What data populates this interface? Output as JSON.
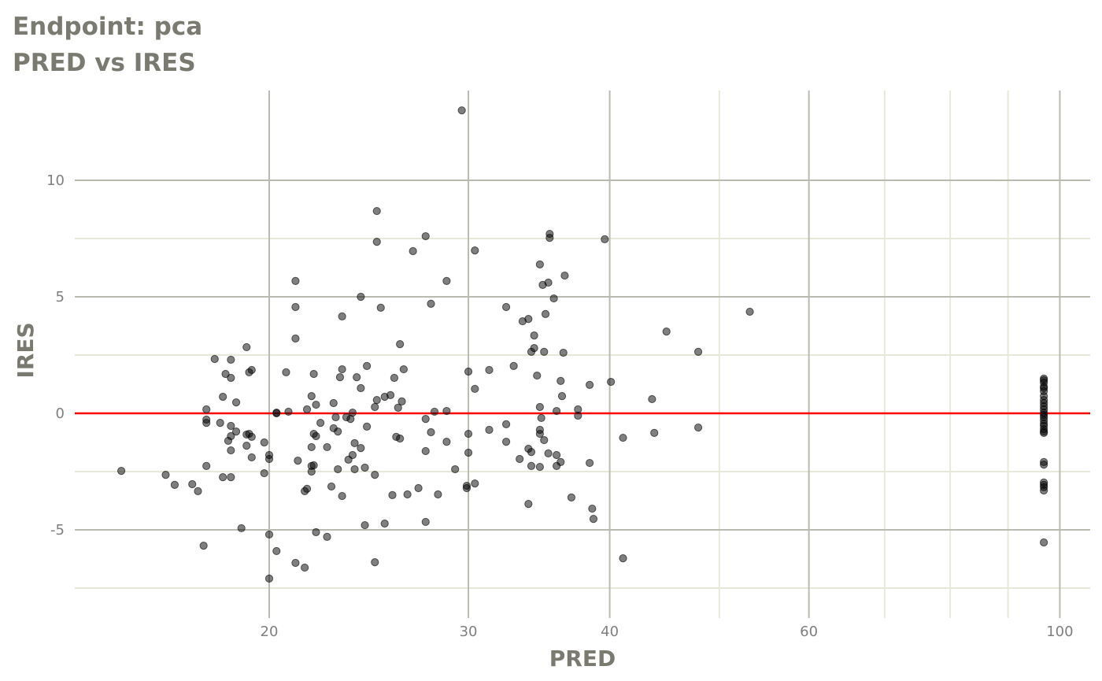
{
  "chart_data": {
    "type": "scatter",
    "title": "Endpoint:  pca",
    "subtitle": "PRED vs IRES",
    "xlabel": "PRED",
    "ylabel": "IRES",
    "x_scale": "log10",
    "xlim": [
      13.5,
      105
    ],
    "ylim": [
      -8.5,
      13.5
    ],
    "x_ticks": [
      20,
      30,
      40,
      60,
      100
    ],
    "x_tick_labels": [
      "20",
      "30",
      "40",
      "60",
      "100"
    ],
    "x_minor_breaks": [
      50,
      70,
      80,
      90
    ],
    "y_ticks": [
      -5,
      0,
      5,
      10
    ],
    "y_tick_labels": [
      "-5",
      "0",
      "5",
      "10"
    ],
    "y_minor_breaks": [
      -7.5,
      -2.5,
      2.5,
      7.5
    ],
    "grid": true,
    "reference_line": {
      "y": 0,
      "color": "#ff0000"
    },
    "point_color": "#000000",
    "point_alpha": 0.5,
    "points": [
      [
        14.8,
        -2.47
      ],
      [
        16.2,
        -2.64
      ],
      [
        16.5,
        -3.07
      ],
      [
        17.1,
        -3.04
      ],
      [
        17.3,
        -3.34
      ],
      [
        17.5,
        -5.68
      ],
      [
        17.6,
        0.17
      ],
      [
        17.6,
        -0.27
      ],
      [
        17.6,
        -0.41
      ],
      [
        17.6,
        -2.26
      ],
      [
        17.9,
        2.33
      ],
      [
        18.1,
        -0.41
      ],
      [
        18.2,
        0.71
      ],
      [
        18.2,
        -2.74
      ],
      [
        18.3,
        1.69
      ],
      [
        18.4,
        -1.18
      ],
      [
        18.5,
        2.3
      ],
      [
        18.5,
        1.52
      ],
      [
        18.5,
        -0.54
      ],
      [
        18.5,
        -0.98
      ],
      [
        18.5,
        -1.59
      ],
      [
        18.5,
        -2.74
      ],
      [
        18.7,
        0.47
      ],
      [
        18.7,
        -0.78
      ],
      [
        18.9,
        -4.93
      ],
      [
        19.1,
        2.84
      ],
      [
        19.1,
        -0.91
      ],
      [
        19.1,
        -1.39
      ],
      [
        19.2,
        1.76
      ],
      [
        19.2,
        -0.88
      ],
      [
        19.3,
        1.86
      ],
      [
        19.3,
        -1.01
      ],
      [
        19.3,
        -1.89
      ],
      [
        19.8,
        -1.25
      ],
      [
        19.8,
        -2.57
      ],
      [
        20.0,
        -1.79
      ],
      [
        20.0,
        -1.96
      ],
      [
        20.0,
        -5.2
      ],
      [
        20.0,
        -7.09
      ],
      [
        20.3,
        0.03
      ],
      [
        20.3,
        0.0
      ],
      [
        20.3,
        -5.91
      ],
      [
        20.7,
        1.76
      ],
      [
        20.8,
        0.07
      ],
      [
        21.1,
        5.68
      ],
      [
        21.1,
        4.56
      ],
      [
        21.1,
        3.21
      ],
      [
        21.1,
        -6.42
      ],
      [
        21.5,
        -6.62
      ],
      [
        21.2,
        -2.03
      ],
      [
        21.5,
        -3.34
      ],
      [
        21.6,
        0.17
      ],
      [
        21.6,
        -3.24
      ],
      [
        21.8,
        -1.45
      ],
      [
        21.8,
        -2.26
      ],
      [
        21.8,
        -2.5
      ],
      [
        21.8,
        0.74
      ],
      [
        21.9,
        1.69
      ],
      [
        21.9,
        -0.88
      ],
      [
        21.9,
        -2.23
      ],
      [
        22.0,
        0.37
      ],
      [
        22.0,
        -0.98
      ],
      [
        22.0,
        -5.1
      ],
      [
        22.2,
        -0.41
      ],
      [
        22.5,
        -1.45
      ],
      [
        22.5,
        -5.3
      ],
      [
        22.7,
        -3.14
      ],
      [
        22.8,
        0.44
      ],
      [
        22.8,
        -0.64
      ],
      [
        22.9,
        -0.17
      ],
      [
        23.0,
        -0.78
      ],
      [
        23.0,
        -2.4
      ],
      [
        23.1,
        1.55
      ],
      [
        23.2,
        4.16
      ],
      [
        23.2,
        -3.55
      ],
      [
        23.2,
        1.89
      ],
      [
        23.4,
        -0.17
      ],
      [
        23.5,
        -1.99
      ],
      [
        23.6,
        -0.24
      ],
      [
        23.7,
        0.03
      ],
      [
        23.7,
        -1.79
      ],
      [
        23.8,
        -1.28
      ],
      [
        23.8,
        -2.4
      ],
      [
        23.9,
        1.55
      ],
      [
        24.1,
        1.08
      ],
      [
        24.1,
        5.0
      ],
      [
        24.1,
        -1.49
      ],
      [
        24.3,
        -2.33
      ],
      [
        24.3,
        -4.8
      ],
      [
        24.4,
        2.03
      ],
      [
        24.4,
        -0.57
      ],
      [
        24.8,
        -2.64
      ],
      [
        24.8,
        -6.39
      ],
      [
        24.8,
        0.27
      ],
      [
        24.9,
        8.68
      ],
      [
        24.9,
        7.36
      ],
      [
        24.9,
        0.57
      ],
      [
        25.1,
        4.53
      ],
      [
        25.3,
        -4.73
      ],
      [
        25.3,
        0.71
      ],
      [
        25.6,
        0.78
      ],
      [
        25.7,
        -3.51
      ],
      [
        25.8,
        1.52
      ],
      [
        25.9,
        -1.01
      ],
      [
        26.0,
        0.24
      ],
      [
        26.1,
        2.97
      ],
      [
        26.1,
        -1.08
      ],
      [
        26.2,
        0.51
      ],
      [
        26.3,
        1.89
      ],
      [
        26.5,
        -3.48
      ],
      [
        26.8,
        6.96
      ],
      [
        27.1,
        -3.21
      ],
      [
        27.5,
        7.6
      ],
      [
        27.5,
        -1.62
      ],
      [
        27.5,
        -0.24
      ],
      [
        27.5,
        -4.66
      ],
      [
        27.8,
        4.7
      ],
      [
        27.8,
        -0.81
      ],
      [
        28.0,
        0.07
      ],
      [
        28.2,
        -3.48
      ],
      [
        28.7,
        5.68
      ],
      [
        28.7,
        -1.22
      ],
      [
        28.7,
        0.1
      ],
      [
        29.2,
        -2.4
      ],
      [
        29.6,
        13.0
      ],
      [
        29.9,
        -3.11
      ],
      [
        29.9,
        -3.21
      ],
      [
        30.0,
        1.79
      ],
      [
        30.0,
        -0.88
      ],
      [
        30.0,
        -1.69
      ],
      [
        30.4,
        -3.01
      ],
      [
        30.4,
        6.99
      ],
      [
        30.4,
        1.05
      ],
      [
        31.3,
        1.86
      ],
      [
        31.3,
        -0.71
      ],
      [
        32.4,
        4.56
      ],
      [
        32.4,
        -1.22
      ],
      [
        32.4,
        -0.47
      ],
      [
        32.9,
        2.03
      ],
      [
        33.3,
        -1.96
      ],
      [
        33.5,
        3.95
      ],
      [
        33.9,
        4.05
      ],
      [
        33.9,
        -3.89
      ],
      [
        33.9,
        -1.52
      ],
      [
        34.1,
        2.64
      ],
      [
        34.1,
        -1.66
      ],
      [
        34.1,
        -2.26
      ],
      [
        34.3,
        2.8
      ],
      [
        34.3,
        3.34
      ],
      [
        34.5,
        1.62
      ],
      [
        34.7,
        6.39
      ],
      [
        34.7,
        0.27
      ],
      [
        34.7,
        -2.3
      ],
      [
        34.7,
        -0.71
      ],
      [
        34.7,
        -0.88
      ],
      [
        34.8,
        -0.2
      ],
      [
        34.9,
        5.51
      ],
      [
        35.0,
        2.64
      ],
      [
        35.0,
        -1.15
      ],
      [
        35.1,
        4.26
      ],
      [
        35.3,
        -1.72
      ],
      [
        35.3,
        5.61
      ],
      [
        35.4,
        7.53
      ],
      [
        35.4,
        7.7
      ],
      [
        35.7,
        4.93
      ],
      [
        35.9,
        0.1
      ],
      [
        35.9,
        -1.79
      ],
      [
        35.9,
        -2.26
      ],
      [
        36.2,
        1.39
      ],
      [
        36.2,
        -2.09
      ],
      [
        36.3,
        0.74
      ],
      [
        36.4,
        2.6
      ],
      [
        36.5,
        5.91
      ],
      [
        37.0,
        -3.61
      ],
      [
        37.5,
        0.17
      ],
      [
        37.5,
        -0.1
      ],
      [
        38.4,
        1.22
      ],
      [
        38.4,
        -2.13
      ],
      [
        38.6,
        -4.09
      ],
      [
        38.7,
        -4.53
      ],
      [
        39.6,
        7.47
      ],
      [
        40.1,
        1.35
      ],
      [
        41.1,
        -1.05
      ],
      [
        41.1,
        -6.22
      ],
      [
        43.6,
        0.61
      ],
      [
        43.8,
        -0.84
      ],
      [
        44.9,
        3.51
      ],
      [
        47.9,
        2.64
      ],
      [
        47.9,
        -0.61
      ],
      [
        53.2,
        4.36
      ],
      [
        96.8,
        1.49
      ],
      [
        96.8,
        1.42
      ],
      [
        96.8,
        1.32
      ],
      [
        96.8,
        1.15
      ],
      [
        96.8,
        1.08
      ],
      [
        96.8,
        0.95
      ],
      [
        96.8,
        0.74
      ],
      [
        96.8,
        0.57
      ],
      [
        96.8,
        0.44
      ],
      [
        96.8,
        0.3
      ],
      [
        96.8,
        0.17
      ],
      [
        96.8,
        0.03
      ],
      [
        96.8,
        -0.07
      ],
      [
        96.8,
        -0.17
      ],
      [
        96.8,
        -0.3
      ],
      [
        96.8,
        -0.44
      ],
      [
        96.8,
        -0.54
      ],
      [
        96.8,
        -0.68
      ],
      [
        96.8,
        -0.78
      ],
      [
        96.8,
        -0.84
      ],
      [
        96.8,
        -2.09
      ],
      [
        96.8,
        -2.2
      ],
      [
        96.8,
        -2.97
      ],
      [
        96.8,
        -3.07
      ],
      [
        96.8,
        -3.17
      ],
      [
        96.8,
        -3.31
      ],
      [
        96.8,
        -5.54
      ]
    ]
  }
}
